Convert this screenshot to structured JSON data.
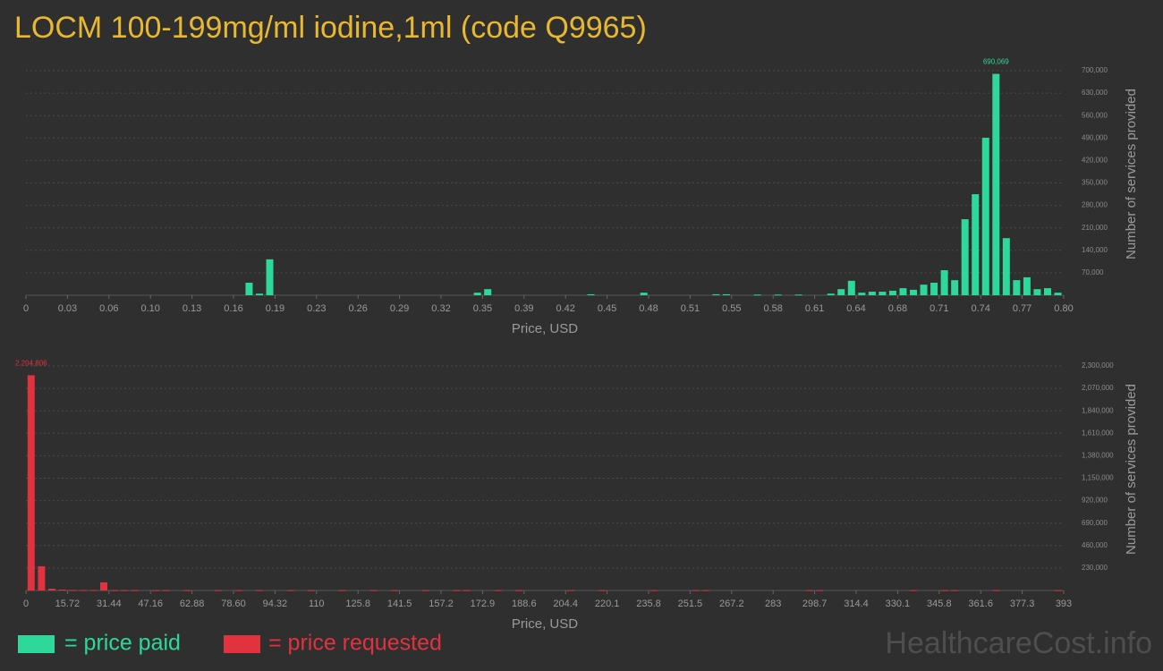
{
  "title": "LOCM 100-199mg/ml iodine,1ml (code Q9965)",
  "watermark": "HealthcareCost.info",
  "chart_data": [
    {
      "type": "bar",
      "x_label": "Price, USD",
      "y_label": "Number of services provided",
      "xlim": [
        0,
        0.8045
      ],
      "xticks": [
        0,
        {
          "value": 0.03218,
          "label": "0.03"
        },
        {
          "value": 0.06436,
          "label": "0.06"
        },
        {
          "value": 0.09654,
          "label": "0.10"
        },
        {
          "value": 0.12872,
          "label": "0.13"
        },
        {
          "value": 0.1609,
          "label": "0.16"
        },
        {
          "value": 0.19308,
          "label": "0.19"
        },
        {
          "value": 0.22526,
          "label": "0.23"
        },
        {
          "value": 0.25744,
          "label": "0.26"
        },
        {
          "value": 0.28962,
          "label": "0.29"
        },
        {
          "value": 0.3218,
          "label": "0.32"
        },
        {
          "value": 0.35398,
          "label": "0.35"
        },
        {
          "value": 0.38616,
          "label": "0.39"
        },
        {
          "value": 0.41834,
          "label": "0.42"
        },
        {
          "value": 0.45052,
          "label": "0.45"
        },
        {
          "value": 0.4827,
          "label": "0.48"
        },
        {
          "value": 0.51488,
          "label": "0.51"
        },
        {
          "value": 0.54706,
          "label": "0.55"
        },
        {
          "value": 0.57924,
          "label": "0.58"
        },
        {
          "value": 0.61142,
          "label": "0.61"
        },
        {
          "value": 0.6436,
          "label": "0.64"
        },
        {
          "value": 0.67578,
          "label": "0.68"
        },
        {
          "value": 0.70796,
          "label": "0.71"
        },
        {
          "value": 0.74014,
          "label": "0.74"
        },
        {
          "value": 0.77232,
          "label": "0.77"
        },
        {
          "value": 0.8045,
          "label": "0.80"
        }
      ],
      "ylim": [
        0,
        700000
      ],
      "yticks": [
        {
          "value": 70000,
          "label": "70,000"
        },
        {
          "value": 140000,
          "label": "140,000"
        },
        {
          "value": 210000,
          "label": "210,000"
        },
        {
          "value": 280000,
          "label": "280,000"
        },
        {
          "value": 350000,
          "label": "350,000"
        },
        {
          "value": 420000,
          "label": "420,000"
        },
        {
          "value": 490000,
          "label": "490,000"
        },
        {
          "value": 560000,
          "label": "560,000"
        },
        {
          "value": 630000,
          "label": "630,000"
        },
        {
          "value": 700000,
          "label": "700,000"
        }
      ],
      "grid": true,
      "x": [
        0.173,
        0.181,
        0.189,
        0.35,
        0.358,
        0.438,
        0.479,
        0.535,
        0.543,
        0.567,
        0.583,
        0.599,
        0.624,
        0.632,
        0.64,
        0.648,
        0.656,
        0.664,
        0.672,
        0.68,
        0.688,
        0.696,
        0.704,
        0.712,
        0.72,
        0.728,
        0.736,
        0.744,
        0.752,
        0.76,
        0.768,
        0.776,
        0.784,
        0.792,
        0.8
      ],
      "series": [
        {
          "name": "= price paid",
          "color": "#2ed89a",
          "values": [
            39000,
            5000,
            112000,
            8000,
            19000,
            3000,
            8000,
            3000,
            3000,
            2000,
            2000,
            2000,
            5000,
            19000,
            45000,
            8000,
            11000,
            11000,
            14000,
            22000,
            17000,
            33000,
            39000,
            78000,
            47000,
            237000,
            315000,
            491000,
            690069,
            178000,
            47000,
            56000,
            19000,
            22000,
            8000
          ],
          "value_labels": [
            null,
            null,
            null,
            null,
            null,
            null,
            null,
            null,
            null,
            null,
            null,
            null,
            null,
            null,
            null,
            null,
            null,
            null,
            null,
            null,
            null,
            null,
            null,
            null,
            null,
            null,
            null,
            null,
            "690,069",
            null,
            null,
            null,
            null,
            null,
            null
          ]
        }
      ]
    },
    {
      "type": "bar",
      "x_label": "Price, USD",
      "y_label": "Number of services provided",
      "xlim": [
        0,
        393
      ],
      "xticks": [
        0,
        15.72,
        31.44,
        47.16,
        62.88,
        {
          "value": 78.6,
          "label": "78.60"
        },
        94.32,
        {
          "value": 110.04,
          "label": "110"
        },
        {
          "value": 125.76,
          "label": "125.8"
        },
        {
          "value": 141.48,
          "label": "141.5"
        },
        157.2,
        {
          "value": 172.92,
          "label": "172.9"
        },
        {
          "value": 188.64,
          "label": "188.6"
        },
        {
          "value": 204.36,
          "label": "204.4"
        },
        {
          "value": 220.08,
          "label": "220.1"
        },
        235.8,
        {
          "value": 251.52,
          "label": "251.5"
        },
        {
          "value": 267.24,
          "label": "267.2"
        },
        {
          "value": 282.96,
          "label": "283"
        },
        {
          "value": 298.68,
          "label": "298.7"
        },
        314.4,
        {
          "value": 330.12,
          "label": "330.1"
        },
        {
          "value": 345.84,
          "label": "345.8"
        },
        {
          "value": 361.56,
          "label": "361.6"
        },
        {
          "value": 377.28,
          "label": "377.3"
        },
        393
      ],
      "ylim": [
        0,
        2300000
      ],
      "yticks": [
        {
          "value": 230000,
          "label": "230,000"
        },
        {
          "value": 460000,
          "label": "460,000"
        },
        {
          "value": 690000,
          "label": "690,000"
        },
        {
          "value": 920000,
          "label": "920,000"
        },
        {
          "value": 1150000,
          "label": "1,150,000"
        },
        {
          "value": 1380000,
          "label": "1,380,000"
        },
        {
          "value": 1610000,
          "label": "1,610,000"
        },
        {
          "value": 1840000,
          "label": "1,840,000"
        },
        {
          "value": 2070000,
          "label": "2,070,000"
        },
        {
          "value": 2300000,
          "label": "2,300,000"
        }
      ],
      "grid": true,
      "x": [
        1.965,
        5.895,
        9.825,
        13.755,
        17.685,
        21.615,
        25.545,
        29.475,
        33.405,
        37.335,
        41.265,
        49.125,
        53.055,
        60.915,
        72.705,
        80.565,
        88.425,
        100.215,
        108.075,
        119.865,
        131.655,
        139.515,
        151.305,
        163.095,
        167.025,
        178.815,
        186.675,
        206.325,
        218.115,
        237.765,
        253.485,
        257.415,
        296.715,
        300.645,
        336.015,
        347.805,
        351.735,
        367.455,
        391.035
      ],
      "series": [
        {
          "name": "= price requested",
          "color": "#e0323f",
          "values": [
            2204806,
            248000,
            18000,
            9000,
            5000,
            5000,
            5000,
            83000,
            3000,
            3000,
            3000,
            3000,
            3000,
            3000,
            3000,
            3000,
            3000,
            3000,
            3000,
            3000,
            3000,
            3000,
            3000,
            3000,
            3000,
            3000,
            3000,
            3000,
            3000,
            3000,
            3000,
            3000,
            3000,
            3000,
            3000,
            3000,
            3000,
            3000,
            3000
          ],
          "value_labels": [
            "2,204,806",
            null,
            null,
            null,
            null,
            null,
            null,
            null,
            null,
            null,
            null,
            null,
            null,
            null,
            null,
            null,
            null,
            null,
            null,
            null,
            null,
            null,
            null,
            null,
            null,
            null,
            null,
            null,
            null,
            null,
            null,
            null,
            null,
            null,
            null,
            null,
            null,
            null,
            null
          ]
        }
      ]
    }
  ]
}
